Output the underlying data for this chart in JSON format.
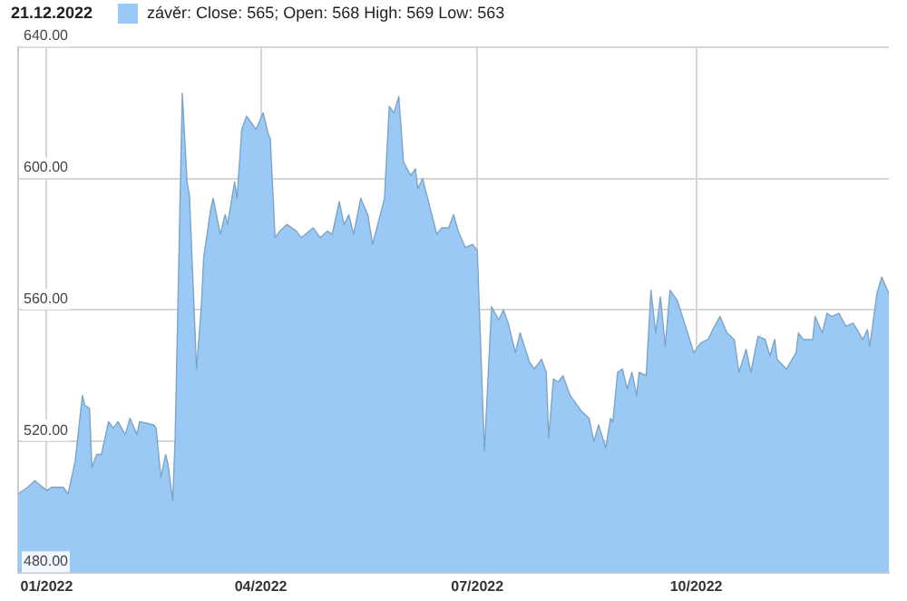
{
  "chart_data": {
    "type": "area",
    "title": "21.12.2022",
    "legend": "top left",
    "grid": true,
    "marker": "none",
    "xlim": [
      "2021-12-20",
      "2022-12-21"
    ],
    "xticks": [
      {
        "value": "2022-01-01",
        "label": "01/2022"
      },
      {
        "value": "2022-04-01",
        "label": "04/2022"
      },
      {
        "value": "2022-07-01",
        "label": "07/2022"
      },
      {
        "value": "2022-10-01",
        "label": "10/2022"
      }
    ],
    "ylim": [
      480,
      640
    ],
    "yticks": [
      {
        "value": 480,
        "label": "480.00"
      },
      {
        "value": 520,
        "label": "520.00"
      },
      {
        "value": 560,
        "label": "560.00"
      },
      {
        "value": 600,
        "label": "600.00"
      },
      {
        "value": 640,
        "label": "640.00"
      }
    ],
    "x": [
      "2021-12-20",
      "2021-12-24",
      "2021-12-27",
      "2022-01-01",
      "2022-01-03",
      "2022-01-08",
      "2022-01-10",
      "2022-01-13",
      "2022-01-16",
      "2022-01-17",
      "2022-01-19",
      "2022-01-20",
      "2022-01-22",
      "2022-01-24",
      "2022-01-27",
      "2022-01-29",
      "2022-01-31",
      "2022-02-03",
      "2022-02-05",
      "2022-02-08",
      "2022-02-09",
      "2022-02-15",
      "2022-02-16",
      "2022-02-18",
      "2022-02-20",
      "2022-02-21",
      "2022-02-23",
      "2022-02-24",
      "2022-02-27",
      "2022-03-01",
      "2022-03-02",
      "2022-03-05",
      "2022-03-07",
      "2022-03-08",
      "2022-03-11",
      "2022-03-12",
      "2022-03-15",
      "2022-03-17",
      "2022-03-18",
      "2022-03-21",
      "2022-03-22",
      "2022-03-24",
      "2022-03-26",
      "2022-03-30",
      "2022-04-02",
      "2022-04-04",
      "2022-04-05",
      "2022-04-07",
      "2022-04-09",
      "2022-04-12",
      "2022-04-16",
      "2022-04-18",
      "2022-04-23",
      "2022-04-26",
      "2022-04-29",
      "2022-05-01",
      "2022-05-04",
      "2022-05-06",
      "2022-05-08",
      "2022-05-10",
      "2022-05-13",
      "2022-05-16",
      "2022-05-18",
      "2022-05-23",
      "2022-05-25",
      "2022-05-27",
      "2022-05-29",
      "2022-05-31",
      "2022-06-03",
      "2022-06-05",
      "2022-06-06",
      "2022-06-08",
      "2022-06-14",
      "2022-06-16",
      "2022-06-19",
      "2022-06-21",
      "2022-06-23",
      "2022-06-26",
      "2022-06-29",
      "2022-07-01",
      "2022-07-04",
      "2022-07-07",
      "2022-07-10",
      "2022-07-12",
      "2022-07-14",
      "2022-07-17",
      "2022-07-19",
      "2022-07-23",
      "2022-07-25",
      "2022-07-28",
      "2022-07-30",
      "2022-07-31",
      "2022-08-02",
      "2022-08-04",
      "2022-08-06",
      "2022-08-09",
      "2022-08-14",
      "2022-08-17",
      "2022-08-19",
      "2022-08-21",
      "2022-08-24",
      "2022-08-26",
      "2022-08-27",
      "2022-08-29",
      "2022-08-31",
      "2022-09-02",
      "2022-09-04",
      "2022-09-06",
      "2022-09-07",
      "2022-09-10",
      "2022-09-12",
      "2022-09-14",
      "2022-09-16",
      "2022-09-18",
      "2022-09-20",
      "2022-09-23",
      "2022-09-27",
      "2022-09-30",
      "2022-10-03",
      "2022-10-06",
      "2022-10-08",
      "2022-10-11",
      "2022-10-14",
      "2022-10-17",
      "2022-10-19",
      "2022-10-22",
      "2022-10-24",
      "2022-10-27",
      "2022-10-30",
      "2022-11-01",
      "2022-11-03",
      "2022-11-04",
      "2022-11-08",
      "2022-11-12",
      "2022-11-13",
      "2022-11-15",
      "2022-11-19",
      "2022-11-20",
      "2022-11-23",
      "2022-11-25",
      "2022-11-27",
      "2022-11-30",
      "2022-12-03",
      "2022-12-06",
      "2022-12-10",
      "2022-12-12",
      "2022-12-13",
      "2022-12-16",
      "2022-12-18",
      "2022-12-21"
    ],
    "series": [
      {
        "name": "závěr: Close: 565; Open: 568 High: 569 Low: 563",
        "color": "#99c9f4",
        "values": [
          504,
          506,
          508,
          505,
          506,
          506,
          504,
          514,
          534,
          531,
          530,
          512,
          516,
          516,
          526,
          524,
          526,
          522,
          527,
          522,
          526,
          525,
          524,
          509,
          516,
          513,
          502,
          521,
          626,
          599,
          595,
          542,
          561,
          576,
          591,
          594,
          583,
          589,
          586,
          599,
          594,
          615,
          619,
          615,
          620,
          614,
          612,
          582,
          584,
          586,
          584,
          582,
          585,
          582,
          584,
          583,
          593,
          586,
          589,
          583,
          594,
          589,
          580,
          594,
          622,
          620,
          625,
          605,
          601,
          603,
          597,
          600,
          583,
          585,
          585,
          589,
          584,
          579,
          580,
          578,
          517,
          561,
          557,
          560,
          556,
          547,
          553,
          544,
          542,
          545,
          541,
          521,
          539,
          538,
          540,
          534,
          529,
          527,
          520,
          525,
          518,
          527,
          526,
          541,
          542,
          536,
          541,
          534,
          541,
          540,
          566,
          553,
          564,
          549,
          566,
          563,
          554,
          547,
          550,
          551,
          554,
          558,
          553,
          551,
          541,
          548,
          541,
          552,
          551,
          546,
          551,
          545,
          542,
          547,
          553,
          551,
          551,
          558,
          553,
          559,
          558,
          559,
          555,
          556,
          551,
          554,
          549,
          565,
          570,
          565
        ]
      }
    ]
  }
}
